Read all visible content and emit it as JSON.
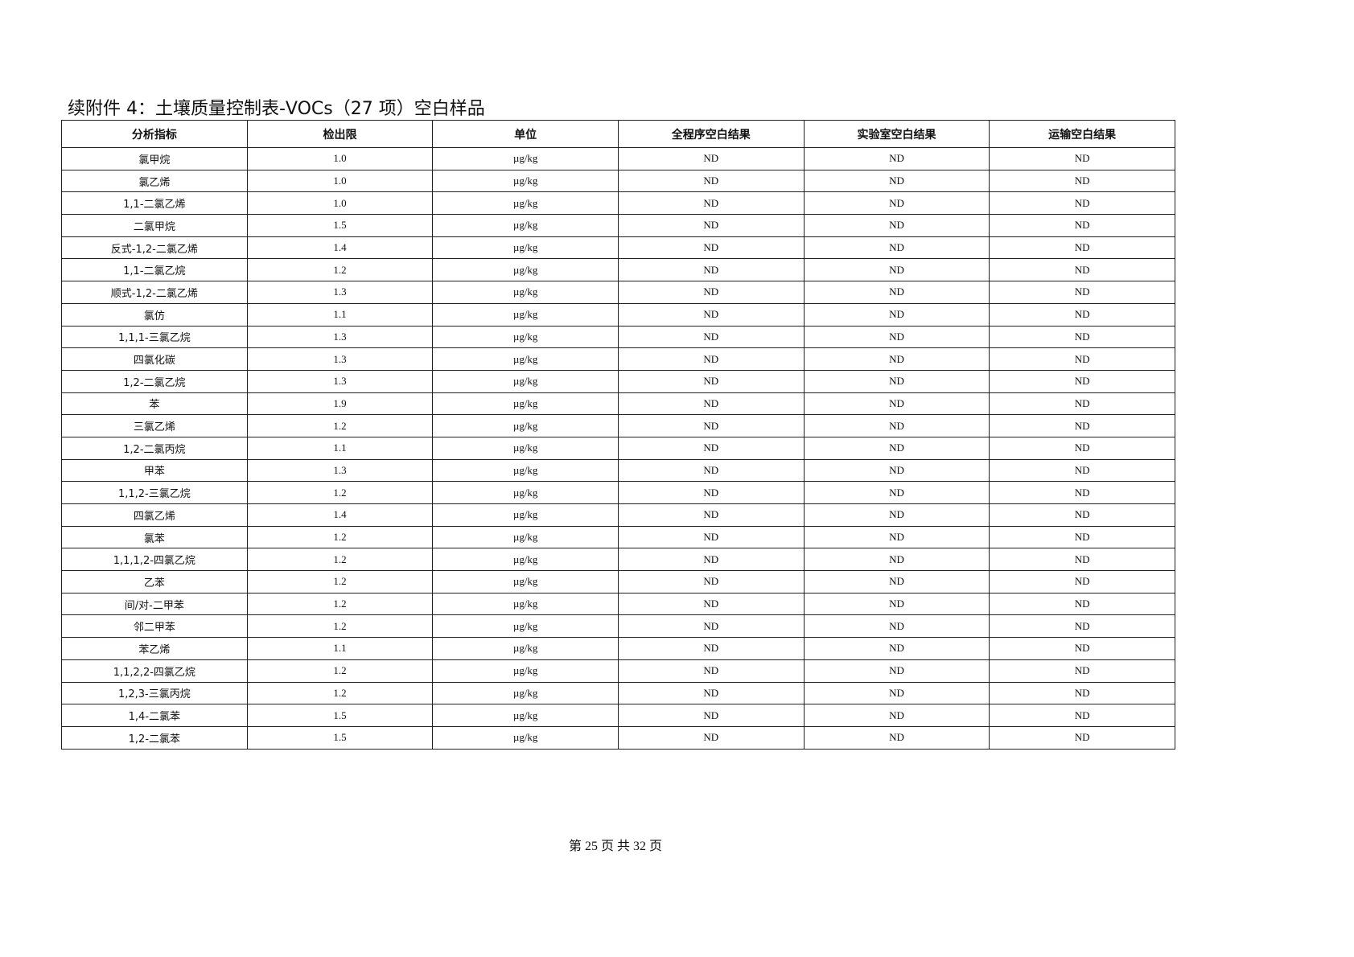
{
  "title": "续附件 4：土壤质量控制表-VOCs（27 项）空白样品",
  "columns": [
    "分析指标",
    "检出限",
    "单位",
    "全程序空白结果",
    "实验室空白结果",
    "运输空白结果"
  ],
  "rows": [
    [
      "氯甲烷",
      "1.0",
      "µg/kg",
      "ND",
      "ND",
      "ND"
    ],
    [
      "氯乙烯",
      "1.0",
      "µg/kg",
      "ND",
      "ND",
      "ND"
    ],
    [
      "1,1-二氯乙烯",
      "1.0",
      "µg/kg",
      "ND",
      "ND",
      "ND"
    ],
    [
      "二氯甲烷",
      "1.5",
      "µg/kg",
      "ND",
      "ND",
      "ND"
    ],
    [
      "反式-1,2-二氯乙烯",
      "1.4",
      "µg/kg",
      "ND",
      "ND",
      "ND"
    ],
    [
      "1,1-二氯乙烷",
      "1.2",
      "µg/kg",
      "ND",
      "ND",
      "ND"
    ],
    [
      "顺式-1,2-二氯乙烯",
      "1.3",
      "µg/kg",
      "ND",
      "ND",
      "ND"
    ],
    [
      "氯仿",
      "1.1",
      "µg/kg",
      "ND",
      "ND",
      "ND"
    ],
    [
      "1,1,1-三氯乙烷",
      "1.3",
      "µg/kg",
      "ND",
      "ND",
      "ND"
    ],
    [
      "四氯化碳",
      "1.3",
      "µg/kg",
      "ND",
      "ND",
      "ND"
    ],
    [
      "1,2-二氯乙烷",
      "1.3",
      "µg/kg",
      "ND",
      "ND",
      "ND"
    ],
    [
      "苯",
      "1.9",
      "µg/kg",
      "ND",
      "ND",
      "ND"
    ],
    [
      "三氯乙烯",
      "1.2",
      "µg/kg",
      "ND",
      "ND",
      "ND"
    ],
    [
      "1,2-二氯丙烷",
      "1.1",
      "µg/kg",
      "ND",
      "ND",
      "ND"
    ],
    [
      "甲苯",
      "1.3",
      "µg/kg",
      "ND",
      "ND",
      "ND"
    ],
    [
      "1,1,2-三氯乙烷",
      "1.2",
      "µg/kg",
      "ND",
      "ND",
      "ND"
    ],
    [
      "四氯乙烯",
      "1.4",
      "µg/kg",
      "ND",
      "ND",
      "ND"
    ],
    [
      "氯苯",
      "1.2",
      "µg/kg",
      "ND",
      "ND",
      "ND"
    ],
    [
      "1,1,1,2-四氯乙烷",
      "1.2",
      "µg/kg",
      "ND",
      "ND",
      "ND"
    ],
    [
      "乙苯",
      "1.2",
      "µg/kg",
      "ND",
      "ND",
      "ND"
    ],
    [
      "间/对-二甲苯",
      "1.2",
      "µg/kg",
      "ND",
      "ND",
      "ND"
    ],
    [
      "邻二甲苯",
      "1.2",
      "µg/kg",
      "ND",
      "ND",
      "ND"
    ],
    [
      "苯乙烯",
      "1.1",
      "µg/kg",
      "ND",
      "ND",
      "ND"
    ],
    [
      "1,1,2,2-四氯乙烷",
      "1.2",
      "µg/kg",
      "ND",
      "ND",
      "ND"
    ],
    [
      "1,2,3-三氯丙烷",
      "1.2",
      "µg/kg",
      "ND",
      "ND",
      "ND"
    ],
    [
      "1,4-二氯苯",
      "1.5",
      "µg/kg",
      "ND",
      "ND",
      "ND"
    ],
    [
      "1,2-二氯苯",
      "1.5",
      "µg/kg",
      "ND",
      "ND",
      "ND"
    ]
  ],
  "footer": "第 25 页 共 32 页"
}
